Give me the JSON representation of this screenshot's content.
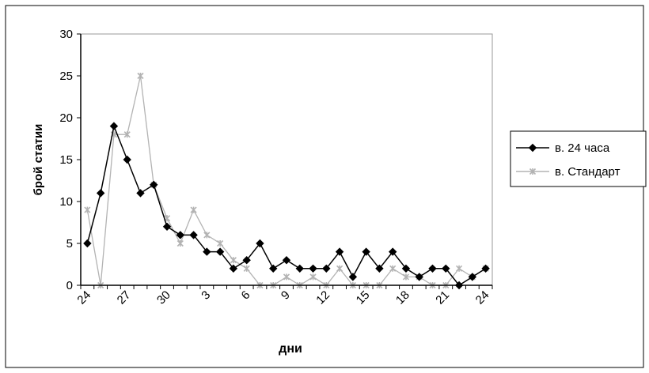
{
  "chart_data": {
    "type": "line",
    "title": "",
    "xlabel": "дни",
    "ylabel": "брой статии",
    "ylim": [
      0,
      30
    ],
    "yticks": [
      0,
      5,
      10,
      15,
      20,
      25,
      30
    ],
    "xticks": [
      "24",
      "27",
      "30",
      "3",
      "6",
      "9",
      "12",
      "15",
      "18",
      "21",
      "24"
    ],
    "grid": false,
    "legend_position": "right",
    "series": [
      {
        "name": "в. 24 часа",
        "color": "#000000",
        "marker": "diamond",
        "values": [
          5,
          11,
          19,
          15,
          11,
          12,
          7,
          6,
          6,
          4,
          4,
          2,
          3,
          5,
          2,
          3,
          2,
          2,
          2,
          4,
          1,
          4,
          2,
          4,
          2,
          1,
          2,
          2,
          0,
          1,
          2
        ]
      },
      {
        "name": "в. Стандарт",
        "color": "#b3b3b3",
        "marker": "star",
        "values": [
          9,
          0,
          18,
          18,
          25,
          12,
          8,
          5,
          9,
          6,
          5,
          3,
          2,
          0,
          0,
          1,
          0,
          1,
          0,
          2,
          0,
          0,
          0,
          2,
          1,
          1,
          0,
          0,
          2,
          1,
          2
        ]
      }
    ]
  }
}
